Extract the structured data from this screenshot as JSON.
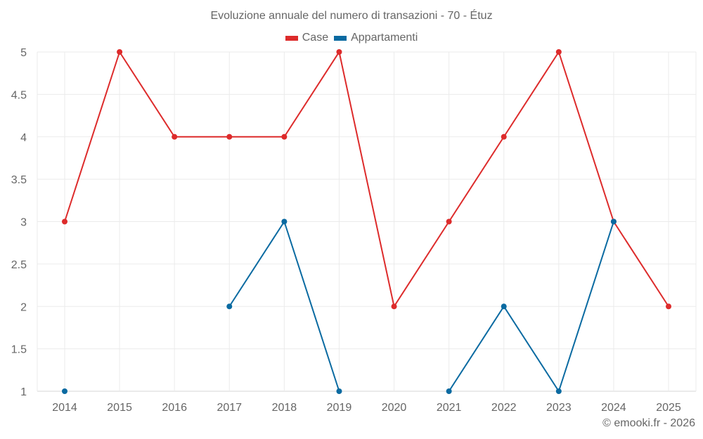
{
  "chart_data": {
    "type": "line",
    "title": "Evoluzione annuale del numero di transazioni - 70 - Étuz",
    "xlabel": "",
    "ylabel": "",
    "categories": [
      "2014",
      "2015",
      "2016",
      "2017",
      "2018",
      "2019",
      "2020",
      "2021",
      "2022",
      "2023",
      "2024",
      "2025"
    ],
    "ylim": [
      1,
      5
    ],
    "yticks": [
      "1",
      "1.5",
      "2",
      "2.5",
      "3",
      "3.5",
      "4",
      "4.5",
      "5"
    ],
    "grid": true,
    "legend_position": "top",
    "series": [
      {
        "name": "Case",
        "color": "#dd2b2b",
        "values": [
          3,
          5,
          4,
          4,
          4,
          5,
          2,
          3,
          4,
          5,
          3,
          2
        ]
      },
      {
        "name": "Appartamenti",
        "color": "#0a6aa1",
        "values": [
          1,
          null,
          null,
          2,
          3,
          1,
          null,
          1,
          2,
          1,
          3,
          null
        ]
      }
    ]
  },
  "legend": {
    "items": [
      {
        "label": "Case",
        "color": "#dd2b2b"
      },
      {
        "label": "Appartamenti",
        "color": "#0a6aa1"
      }
    ]
  },
  "credit": "© emooki.fr - 2026"
}
